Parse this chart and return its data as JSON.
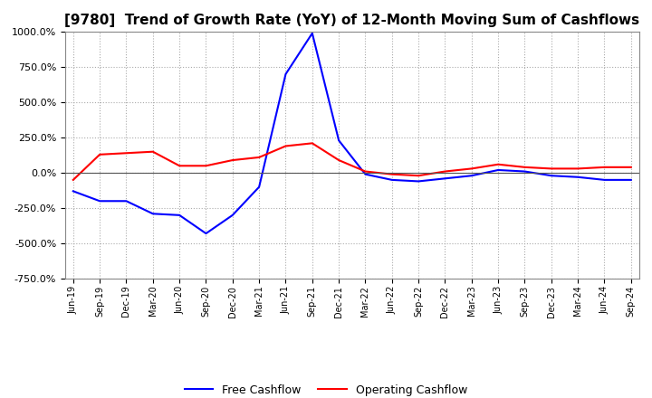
{
  "title": "[9780]  Trend of Growth Rate (YoY) of 12-Month Moving Sum of Cashflows",
  "title_fontsize": 11,
  "background_color": "#ffffff",
  "plot_bg_color": "#ffffff",
  "grid_color": "#aaaaaa",
  "ylim": [
    -750,
    1000
  ],
  "yticks": [
    -750,
    -500,
    -250,
    0,
    250,
    500,
    750,
    1000
  ],
  "x_labels": [
    "Jun-19",
    "Sep-19",
    "Dec-19",
    "Mar-20",
    "Jun-20",
    "Sep-20",
    "Dec-20",
    "Mar-21",
    "Jun-21",
    "Sep-21",
    "Dec-21",
    "Mar-22",
    "Jun-22",
    "Sep-22",
    "Dec-22",
    "Mar-23",
    "Jun-23",
    "Sep-23",
    "Dec-23",
    "Mar-24",
    "Jun-24",
    "Sep-24"
  ],
  "operating_cashflow": [
    -50,
    130,
    140,
    150,
    50,
    50,
    90,
    110,
    190,
    210,
    90,
    10,
    -10,
    -20,
    10,
    30,
    60,
    40,
    30,
    30,
    40,
    40
  ],
  "free_cashflow": [
    -130,
    -200,
    -200,
    -290,
    -300,
    -430,
    -300,
    -100,
    700,
    990,
    230,
    -10,
    -50,
    -60,
    -40,
    -20,
    20,
    10,
    -20,
    -30,
    -50,
    -50
  ],
  "op_color": "#ff0000",
  "free_color": "#0000ff",
  "legend_label_op": "Operating Cashflow",
  "legend_label_free": "Free Cashflow"
}
